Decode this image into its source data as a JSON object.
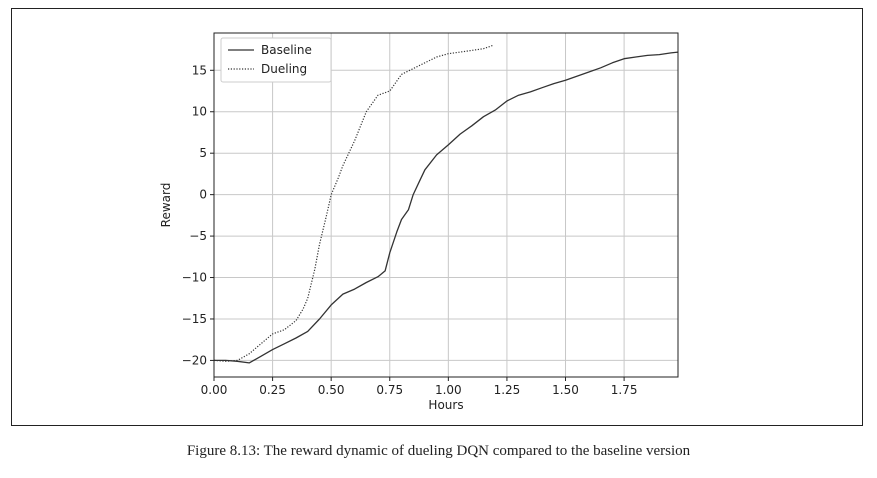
{
  "caption": "Figure 8.13: The reward dynamic of dueling DQN compared to the baseline version",
  "chart_data": {
    "type": "line",
    "xlabel": "Hours",
    "ylabel": "Reward",
    "xlim": [
      0.0,
      1.98
    ],
    "ylim": [
      -22,
      19.5
    ],
    "xticks": [
      0.0,
      0.25,
      0.5,
      0.75,
      1.0,
      1.25,
      1.5,
      1.75
    ],
    "xtick_labels": [
      "0.00",
      "0.25",
      "0.50",
      "0.75",
      "1.00",
      "1.25",
      "1.50",
      "1.75"
    ],
    "yticks": [
      -20,
      -15,
      -10,
      -5,
      0,
      5,
      10,
      15
    ],
    "ytick_labels": [
      "−20",
      "−15",
      "−10",
      "−5",
      "0",
      "5",
      "10",
      "15"
    ],
    "grid": true,
    "legend_position": "top-left",
    "series": [
      {
        "name": "Baseline",
        "style": "solid",
        "color": "#333333",
        "x": [
          0.0,
          0.05,
          0.1,
          0.15,
          0.2,
          0.25,
          0.3,
          0.35,
          0.4,
          0.45,
          0.5,
          0.55,
          0.6,
          0.65,
          0.7,
          0.73,
          0.75,
          0.78,
          0.8,
          0.83,
          0.85,
          0.88,
          0.9,
          0.95,
          1.0,
          1.05,
          1.1,
          1.15,
          1.2,
          1.25,
          1.3,
          1.35,
          1.4,
          1.45,
          1.5,
          1.55,
          1.6,
          1.65,
          1.7,
          1.75,
          1.8,
          1.85,
          1.9,
          1.95,
          1.98
        ],
        "y": [
          -20.0,
          -20.0,
          -20.1,
          -20.3,
          -19.5,
          -18.7,
          -18.0,
          -17.3,
          -16.5,
          -15.0,
          -13.3,
          -12.0,
          -11.4,
          -10.6,
          -9.9,
          -9.2,
          -7.0,
          -4.5,
          -3.0,
          -1.8,
          0.0,
          1.8,
          3.0,
          4.8,
          6.0,
          7.3,
          8.3,
          9.4,
          10.2,
          11.3,
          12.0,
          12.4,
          12.9,
          13.4,
          13.8,
          14.3,
          14.8,
          15.3,
          15.9,
          16.4,
          16.6,
          16.8,
          16.9,
          17.1,
          17.2
        ]
      },
      {
        "name": "Dueling",
        "style": "dotted",
        "color": "#333333",
        "x": [
          0.0,
          0.05,
          0.1,
          0.15,
          0.2,
          0.25,
          0.3,
          0.35,
          0.38,
          0.4,
          0.43,
          0.45,
          0.48,
          0.5,
          0.53,
          0.55,
          0.6,
          0.65,
          0.7,
          0.75,
          0.8,
          0.85,
          0.9,
          0.95,
          1.0,
          1.05,
          1.1,
          1.15,
          1.19
        ],
        "y": [
          -20.0,
          -20.1,
          -20.0,
          -19.2,
          -18.0,
          -16.8,
          -16.3,
          -15.2,
          -13.8,
          -12.5,
          -9.0,
          -6.0,
          -2.5,
          0.0,
          2.0,
          3.5,
          6.5,
          10.0,
          12.0,
          12.5,
          14.5,
          15.2,
          15.9,
          16.6,
          17.0,
          17.2,
          17.4,
          17.6,
          18.0
        ]
      }
    ]
  }
}
